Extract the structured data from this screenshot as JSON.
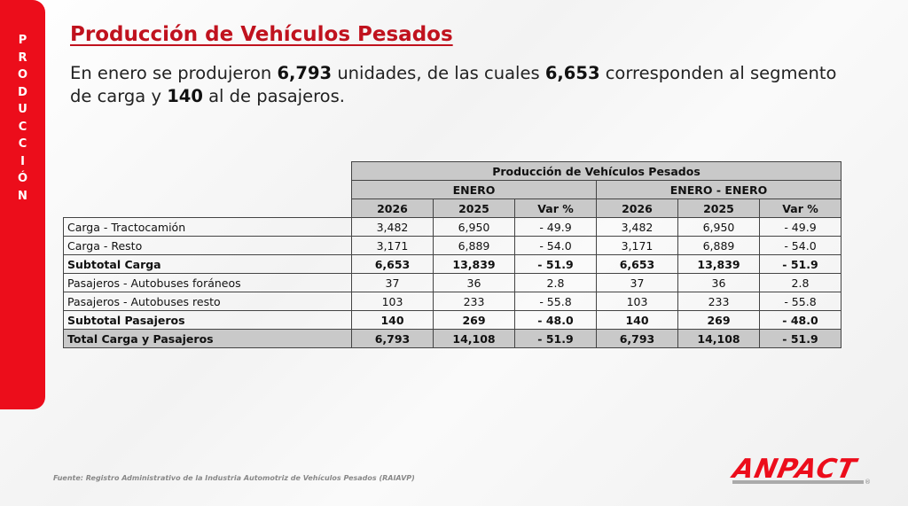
{
  "sidebar": {
    "label": "PRODUCCIÓN"
  },
  "title": "Producción de Vehículos Pesados",
  "summary": {
    "p1": "En enero se produjeron ",
    "v1": "6,793",
    "p2": " unidades, de las cuales ",
    "v2": "6,653",
    "p3": " corresponden al segmento de carga y ",
    "v3": "140",
    "p4": " al de pasajeros."
  },
  "table": {
    "title": "Producción de Vehículos Pesados",
    "groups": [
      "ENERO",
      "ENERO - ENERO"
    ],
    "cols": [
      "2026",
      "2025",
      "Var %",
      "2026",
      "2025",
      "Var %"
    ],
    "rows": [
      {
        "label": "Carga - Tractocamión",
        "v": [
          "3,482",
          "6,950",
          "- 49.9",
          "3,482",
          "6,950",
          "- 49.9"
        ]
      },
      {
        "label": "Carga - Resto",
        "v": [
          "3,171",
          "6,889",
          "- 54.0",
          "3,171",
          "6,889",
          "- 54.0"
        ]
      },
      {
        "label": "Subtotal Carga",
        "v": [
          "6,653",
          "13,839",
          "- 51.9",
          "6,653",
          "13,839",
          "- 51.9"
        ]
      },
      {
        "label": "Pasajeros - Autobuses foráneos",
        "v": [
          "37",
          "36",
          "2.8",
          "37",
          "36",
          "2.8"
        ]
      },
      {
        "label": "Pasajeros - Autobuses resto",
        "v": [
          "103",
          "233",
          "- 55.8",
          "103",
          "233",
          "- 55.8"
        ]
      },
      {
        "label": "Subtotal Pasajeros",
        "v": [
          "140",
          "269",
          "- 48.0",
          "140",
          "269",
          "- 48.0"
        ]
      },
      {
        "label": "Total Carga y Pasajeros",
        "v": [
          "6,793",
          "14,108",
          "- 51.9",
          "6,793",
          "14,108",
          "- 51.9"
        ]
      }
    ]
  },
  "source": "Fuente: Registro Administrativo de la Industria Automotriz de Vehículos Pesados (RAIAVP)",
  "logo": {
    "text": "ANPACT",
    "reg": "®"
  },
  "colors": {
    "red": "#ec0d1b",
    "title": "#c0121e",
    "header": "#c9c9c9"
  }
}
